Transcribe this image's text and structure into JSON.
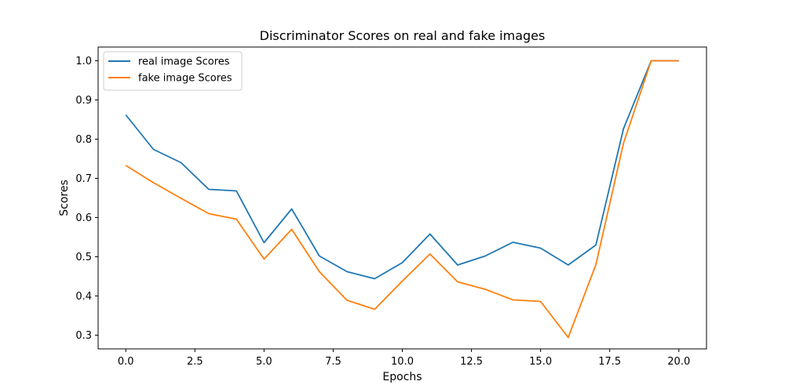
{
  "chart_data": {
    "type": "line",
    "title": "Discriminator Scores on real and fake images",
    "xlabel": "Epochs",
    "ylabel": "Scores",
    "xlim": [
      -1,
      21
    ],
    "ylim": [
      0.265,
      1.035
    ],
    "x_ticks": [
      0.0,
      2.5,
      5.0,
      7.5,
      10.0,
      12.5,
      15.0,
      17.5,
      20.0
    ],
    "x_tick_labels": [
      "0.0",
      "2.5",
      "5.0",
      "7.5",
      "10.0",
      "12.5",
      "15.0",
      "17.5",
      "20.0"
    ],
    "y_ticks": [
      0.3,
      0.4,
      0.5,
      0.6,
      0.7,
      0.8,
      0.9,
      1.0
    ],
    "y_tick_labels": [
      "0.3",
      "0.4",
      "0.5",
      "0.6",
      "0.7",
      "0.8",
      "0.9",
      "1.0"
    ],
    "grid": false,
    "legend_position": "top-left",
    "x": [
      0,
      1,
      2,
      3,
      4,
      5,
      6,
      7,
      8,
      9,
      10,
      11,
      12,
      13,
      14,
      15,
      16,
      17,
      18,
      19,
      20
    ],
    "series": [
      {
        "name": "real image Scores",
        "color": "#1f77b4",
        "values": [
          0.862,
          0.774,
          0.74,
          0.672,
          0.668,
          0.536,
          0.622,
          0.502,
          0.462,
          0.444,
          0.485,
          0.558,
          0.479,
          0.502,
          0.537,
          0.522,
          0.479,
          0.53,
          0.827,
          1.0,
          1.0
        ]
      },
      {
        "name": "fake image Scores",
        "color": "#ff7f0e",
        "values": [
          0.733,
          0.689,
          0.649,
          0.61,
          0.596,
          0.494,
          0.57,
          0.462,
          0.389,
          0.366,
          0.438,
          0.507,
          0.436,
          0.417,
          0.39,
          0.386,
          0.294,
          0.48,
          0.79,
          1.0,
          1.0
        ]
      }
    ]
  }
}
